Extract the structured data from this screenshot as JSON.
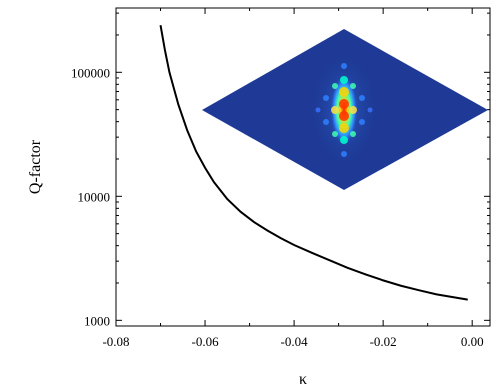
{
  "chart_data": {
    "type": "line",
    "xlabel": "κ",
    "ylabel": "Q-factor",
    "xlim": [
      -0.08,
      0.004
    ],
    "ylim": [
      900,
      330000
    ],
    "yscale": "log",
    "grid": false,
    "x_ticks": [
      -0.08,
      -0.06,
      -0.04,
      -0.02,
      0.0
    ],
    "x_tick_labels": [
      "-0.08",
      "-0.06",
      "-0.04",
      "-0.02",
      "0.00"
    ],
    "y_ticks": [
      1000,
      10000,
      100000
    ],
    "y_tick_labels": [
      "1000",
      "10000",
      "100000"
    ],
    "series": [
      {
        "color": "#000000",
        "x": [
          -0.07,
          -0.069,
          -0.068,
          -0.066,
          -0.064,
          -0.062,
          -0.06,
          -0.058,
          -0.055,
          -0.052,
          -0.049,
          -0.046,
          -0.043,
          -0.04,
          -0.036,
          -0.032,
          -0.028,
          -0.024,
          -0.02,
          -0.016,
          -0.012,
          -0.008,
          -0.004,
          -0.001
        ],
        "y": [
          240000,
          150000,
          100000,
          55000,
          34000,
          23000,
          17000,
          13000,
          9500,
          7500,
          6200,
          5300,
          4600,
          4050,
          3500,
          3050,
          2650,
          2350,
          2100,
          1900,
          1750,
          1620,
          1530,
          1470
        ]
      }
    ],
    "inset": {
      "description_type": "heatmap-field",
      "background_color": "#1e3a96",
      "hot_colors": [
        "#ff0000",
        "#ffff00",
        "#00ffcc",
        "#2f80ff"
      ]
    }
  }
}
